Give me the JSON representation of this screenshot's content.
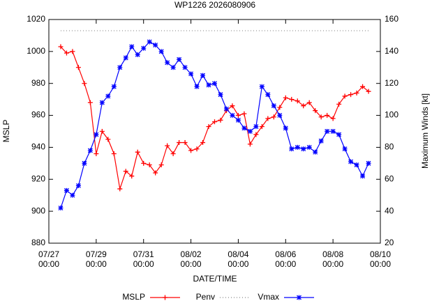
{
  "chart_data": {
    "type": "line",
    "title": "WP1226 2026080906",
    "xlabel": "DATE/TIME",
    "ylabel": "MSLP",
    "y2label": "Maximum Winds [kt]",
    "x": [
      "07/27 12:00",
      "07/27 18:00",
      "07/28 00:00",
      "07/28 06:00",
      "07/28 12:00",
      "07/28 18:00",
      "07/29 00:00",
      "07/29 06:00",
      "07/29 12:00",
      "07/29 18:00",
      "07/30 00:00",
      "07/30 06:00",
      "07/30 12:00",
      "07/30 18:00",
      "07/31 00:00",
      "07/31 06:00",
      "07/31 12:00",
      "07/31 18:00",
      "08/01 00:00",
      "08/01 06:00",
      "08/01 12:00",
      "08/01 18:00",
      "08/02 00:00",
      "08/02 06:00",
      "08/02 12:00",
      "08/02 18:00",
      "08/03 00:00",
      "08/03 06:00",
      "08/03 12:00",
      "08/03 18:00",
      "08/04 00:00",
      "08/04 06:00",
      "08/04 12:00",
      "08/04 18:00",
      "08/05 00:00",
      "08/05 06:00",
      "08/05 12:00",
      "08/05 18:00",
      "08/06 00:00",
      "08/06 06:00",
      "08/06 12:00",
      "08/06 18:00",
      "08/07 00:00",
      "08/07 06:00",
      "08/07 12:00",
      "08/07 18:00",
      "08/08 00:00",
      "08/08 06:00",
      "08/08 12:00",
      "08/08 18:00",
      "08/09 00:00",
      "08/09 06:00",
      "08/09 12:00"
    ],
    "series": [
      {
        "name": "MSLP",
        "color": "#ff0000",
        "marker": "plus",
        "values": [
          1003,
          999,
          1000,
          990,
          980,
          968,
          936,
          950,
          945,
          936,
          914,
          925,
          922,
          937,
          930,
          929,
          924,
          929,
          941,
          936,
          943,
          943,
          938,
          939,
          943,
          953,
          956,
          957,
          963,
          966,
          960,
          961,
          942,
          948,
          953,
          958,
          959,
          965,
          971,
          970,
          969,
          966,
          968,
          963,
          959,
          960,
          958,
          967,
          972,
          973,
          974,
          978,
          975
        ]
      },
      {
        "name": "Penv",
        "color": "#888888",
        "marker": "none",
        "dash": "1 3",
        "values": [
          1013,
          1013,
          1013,
          1013,
          1013,
          1013,
          1013,
          1013,
          1013,
          1013,
          1013,
          1013,
          1013,
          1013,
          1013,
          1013,
          1013,
          1013,
          1013,
          1013,
          1013,
          1013,
          1013,
          1013,
          1013,
          1013,
          1013,
          1013,
          1013,
          1013,
          1013,
          1013,
          1013,
          1013,
          1013,
          1013,
          1013,
          1013,
          1013,
          1013,
          1013,
          1013,
          1013,
          1013,
          1013,
          1013,
          1013,
          1013,
          1013,
          1013,
          1013,
          1013,
          1013
        ]
      },
      {
        "name": "Vmax",
        "color": "#0000ff",
        "marker": "star",
        "axis": "y2",
        "values": [
          42,
          53,
          50,
          56,
          70,
          78,
          88,
          108,
          112,
          118,
          130,
          136,
          143,
          138,
          142,
          146,
          144,
          140,
          133,
          130,
          135,
          130,
          126,
          118,
          125,
          119,
          120,
          113,
          104,
          100,
          97,
          92,
          90,
          93,
          118,
          113,
          106,
          100,
          92,
          79,
          80,
          79,
          80,
          77,
          84,
          90,
          90,
          88,
          79,
          71,
          69,
          62,
          70
        ]
      }
    ],
    "xlim": [
      "07/27 00:00",
      "08/10 00:00"
    ],
    "xticks": [
      "07/27 00:00",
      "07/29 00:00",
      "07/31 00:00",
      "08/02 00:00",
      "08/04 00:00",
      "08/06 00:00",
      "08/08 00:00",
      "08/10 00:00"
    ],
    "ylim": [
      880,
      1020
    ],
    "yticks": [
      880,
      900,
      920,
      940,
      960,
      980,
      1000,
      1020
    ],
    "y2lim": [
      20,
      160
    ],
    "y2ticks": [
      20,
      40,
      60,
      80,
      100,
      120,
      140,
      160
    ],
    "legend": "bottom"
  }
}
